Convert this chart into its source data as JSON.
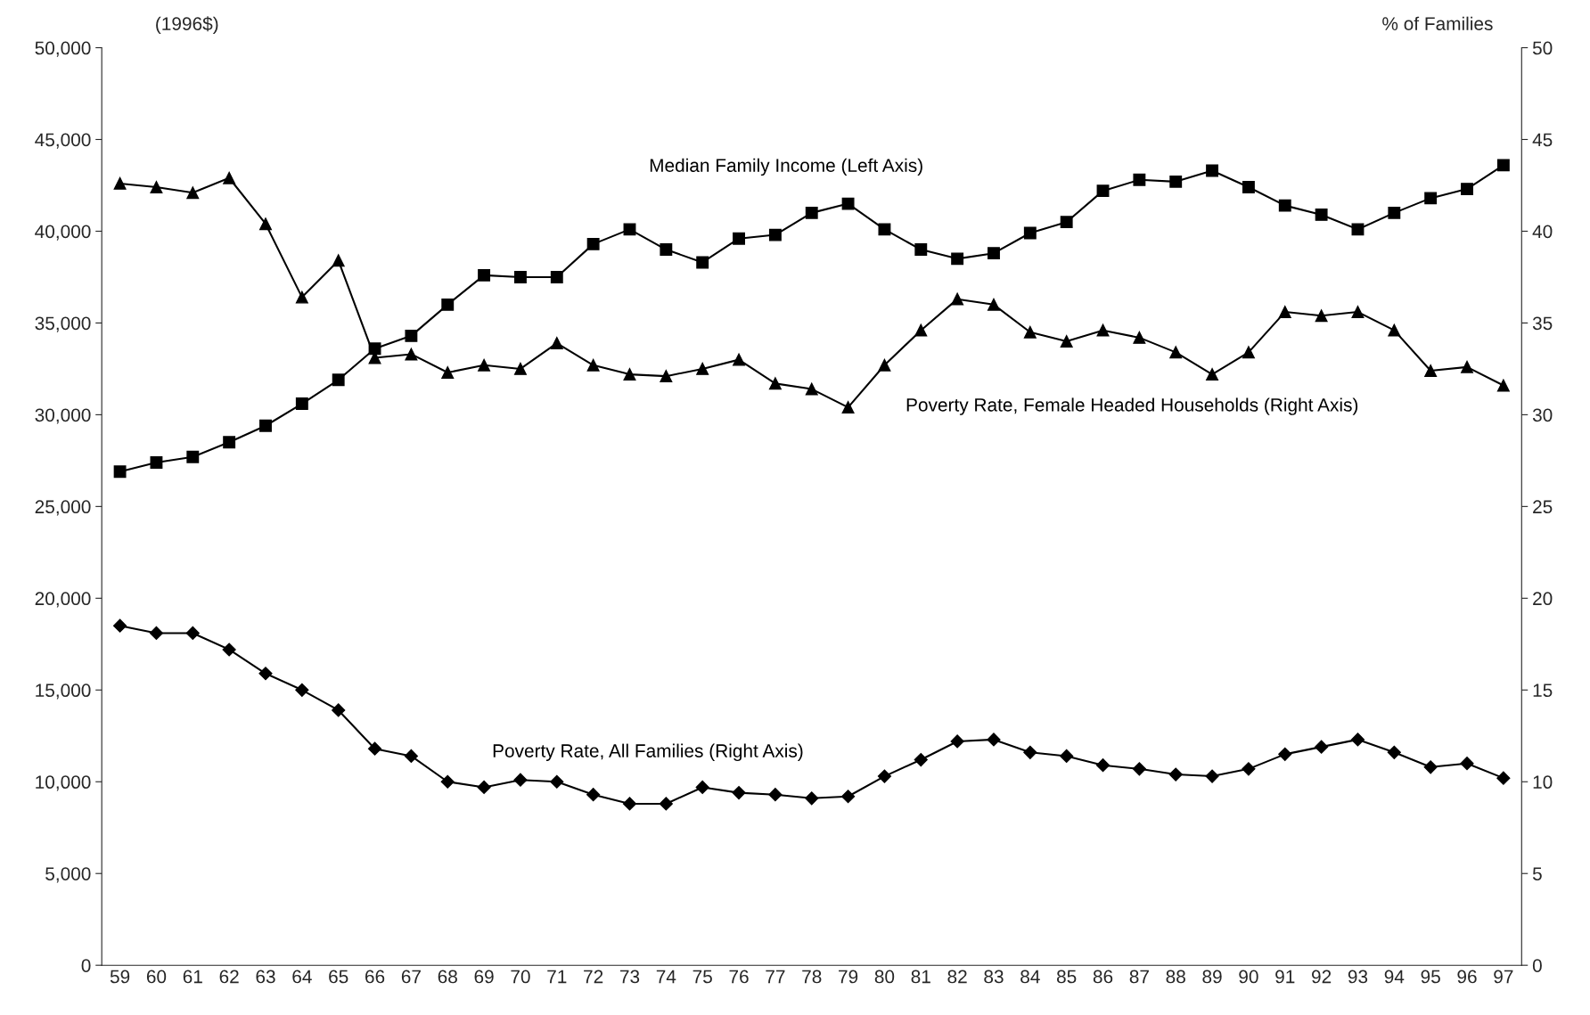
{
  "chart_data": {
    "type": "line",
    "ylabel": "(1996$)",
    "y2label": "% of Families",
    "categories": [
      "59",
      "60",
      "61",
      "62",
      "63",
      "64",
      "65",
      "66",
      "67",
      "68",
      "69",
      "70",
      "71",
      "72",
      "73",
      "74",
      "75",
      "76",
      "77",
      "78",
      "79",
      "80",
      "81",
      "82",
      "83",
      "84",
      "85",
      "86",
      "87",
      "88",
      "89",
      "90",
      "91",
      "92",
      "93",
      "94",
      "95",
      "96",
      "97"
    ],
    "ylim": [
      0,
      50000
    ],
    "yticks": [
      {
        "value": 0,
        "label": "0"
      },
      {
        "value": 5000,
        "label": "5,000"
      },
      {
        "value": 10000,
        "label": "10,000"
      },
      {
        "value": 15000,
        "label": "15,000"
      },
      {
        "value": 20000,
        "label": "20,000"
      },
      {
        "value": 25000,
        "label": "25,000"
      },
      {
        "value": 30000,
        "label": "30,000"
      },
      {
        "value": 35000,
        "label": "35,000"
      },
      {
        "value": 40000,
        "label": "40,000"
      },
      {
        "value": 45000,
        "label": "45,000"
      },
      {
        "value": 50000,
        "label": "50,000"
      }
    ],
    "y2lim": [
      0,
      50
    ],
    "y2ticks": [
      0,
      5,
      10,
      15,
      20,
      25,
      30,
      35,
      40,
      45,
      50
    ],
    "grid": false,
    "legend": false,
    "series": [
      {
        "name": "Median Family Income (Left Axis)",
        "color": "#000000",
        "marker": "square",
        "axis": "y",
        "values": [
          26900,
          27400,
          27700,
          28500,
          29400,
          30600,
          31900,
          33600,
          34300,
          36000,
          37600,
          37500,
          37500,
          39300,
          40100,
          39000,
          38300,
          39600,
          39800,
          41000,
          41500,
          40100,
          39000,
          38500,
          38800,
          39900,
          40500,
          42200,
          42800,
          42700,
          43300,
          42400,
          41400,
          40900,
          40100,
          41000,
          41800,
          42300,
          43600
        ]
      },
      {
        "name": "Poverty Rate, Female Headed Households (Right Axis)",
        "color": "#000000",
        "marker": "triangle",
        "axis": "y2",
        "values": [
          42.6,
          42.4,
          42.1,
          42.9,
          40.4,
          36.4,
          38.4,
          33.1,
          33.3,
          32.3,
          32.7,
          32.5,
          33.9,
          32.7,
          32.2,
          32.1,
          32.5,
          33.0,
          31.7,
          31.4,
          30.4,
          32.7,
          34.6,
          36.3,
          36.0,
          34.5,
          34.0,
          34.6,
          34.2,
          33.4,
          32.2,
          33.4,
          35.6,
          35.4,
          35.6,
          34.6,
          32.4,
          32.6,
          31.6
        ]
      },
      {
        "name": "Poverty Rate, All Families (Right Axis)",
        "color": "#000000",
        "marker": "diamond",
        "axis": "y2",
        "values": [
          18.5,
          18.1,
          18.1,
          17.2,
          15.9,
          15.0,
          13.9,
          11.8,
          11.4,
          10.0,
          9.7,
          10.1,
          10.0,
          9.3,
          8.8,
          8.8,
          9.7,
          9.4,
          9.3,
          9.1,
          9.2,
          10.3,
          11.2,
          12.2,
          12.3,
          11.6,
          11.4,
          10.9,
          10.7,
          10.4,
          10.3,
          10.7,
          11.5,
          11.9,
          12.3,
          11.6,
          10.8,
          11.0,
          10.2
        ]
      }
    ]
  }
}
